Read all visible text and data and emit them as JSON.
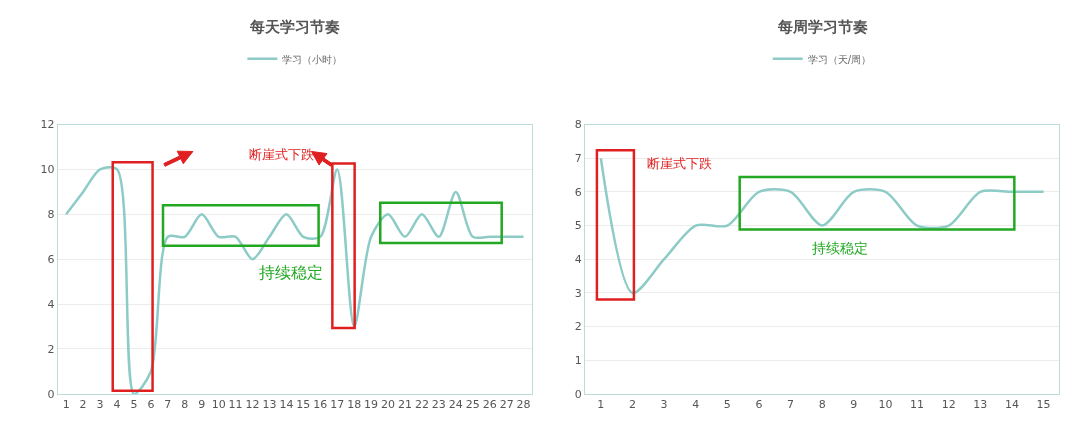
{
  "chart_data": [
    {
      "type": "line",
      "title": "每天学习节奏",
      "x": [
        1,
        2,
        3,
        4,
        5,
        6,
        7,
        8,
        9,
        10,
        11,
        12,
        13,
        14,
        15,
        16,
        17,
        18,
        19,
        20,
        21,
        22,
        23,
        24,
        25,
        26,
        27,
        28
      ],
      "series": [
        {
          "name": "学习（小时）",
          "color": "#8ccbc6",
          "values": [
            8,
            9,
            10,
            10,
            0,
            1,
            7,
            7,
            8,
            7,
            7,
            6,
            7,
            8,
            7,
            7,
            10,
            3,
            7,
            8,
            7,
            8,
            7,
            9,
            7,
            7,
            7,
            7
          ]
        }
      ],
      "xlim": [
        0.5,
        28.5
      ],
      "xticks": [
        1,
        2,
        3,
        4,
        5,
        6,
        7,
        8,
        9,
        10,
        11,
        12,
        13,
        14,
        15,
        16,
        17,
        18,
        19,
        20,
        21,
        22,
        23,
        24,
        25,
        26,
        27,
        28
      ],
      "ylim": [
        0,
        12
      ],
      "yticks": [
        0,
        2,
        4,
        6,
        8,
        10,
        12
      ],
      "grid": "y",
      "legend": "top",
      "marker": "none",
      "line_style": "solid",
      "annotations": [
        "断崖式下跌",
        "持续稳定"
      ]
    },
    {
      "type": "line",
      "title": "每周学习节奏",
      "x": [
        1,
        2,
        3,
        4,
        5,
        6,
        7,
        8,
        9,
        10,
        11,
        12,
        13,
        14,
        15
      ],
      "series": [
        {
          "name": "学习（天/周）",
          "color": "#8ccbc6",
          "values": [
            7,
            3,
            4,
            5,
            5,
            6,
            6,
            5,
            6,
            6,
            5,
            5,
            6,
            6,
            6
          ]
        }
      ],
      "xlim": [
        0.5,
        15.5
      ],
      "xticks": [
        1,
        2,
        3,
        4,
        5,
        6,
        7,
        8,
        9,
        10,
        11,
        12,
        13,
        14,
        15
      ],
      "ylim": [
        0,
        8
      ],
      "yticks": [
        0,
        1,
        2,
        3,
        4,
        5,
        6,
        7,
        8
      ],
      "grid": "y",
      "legend": "top",
      "marker": "none",
      "line_style": "solid",
      "annotations": [
        "断崖式下跌",
        "持续稳定"
      ]
    }
  ]
}
